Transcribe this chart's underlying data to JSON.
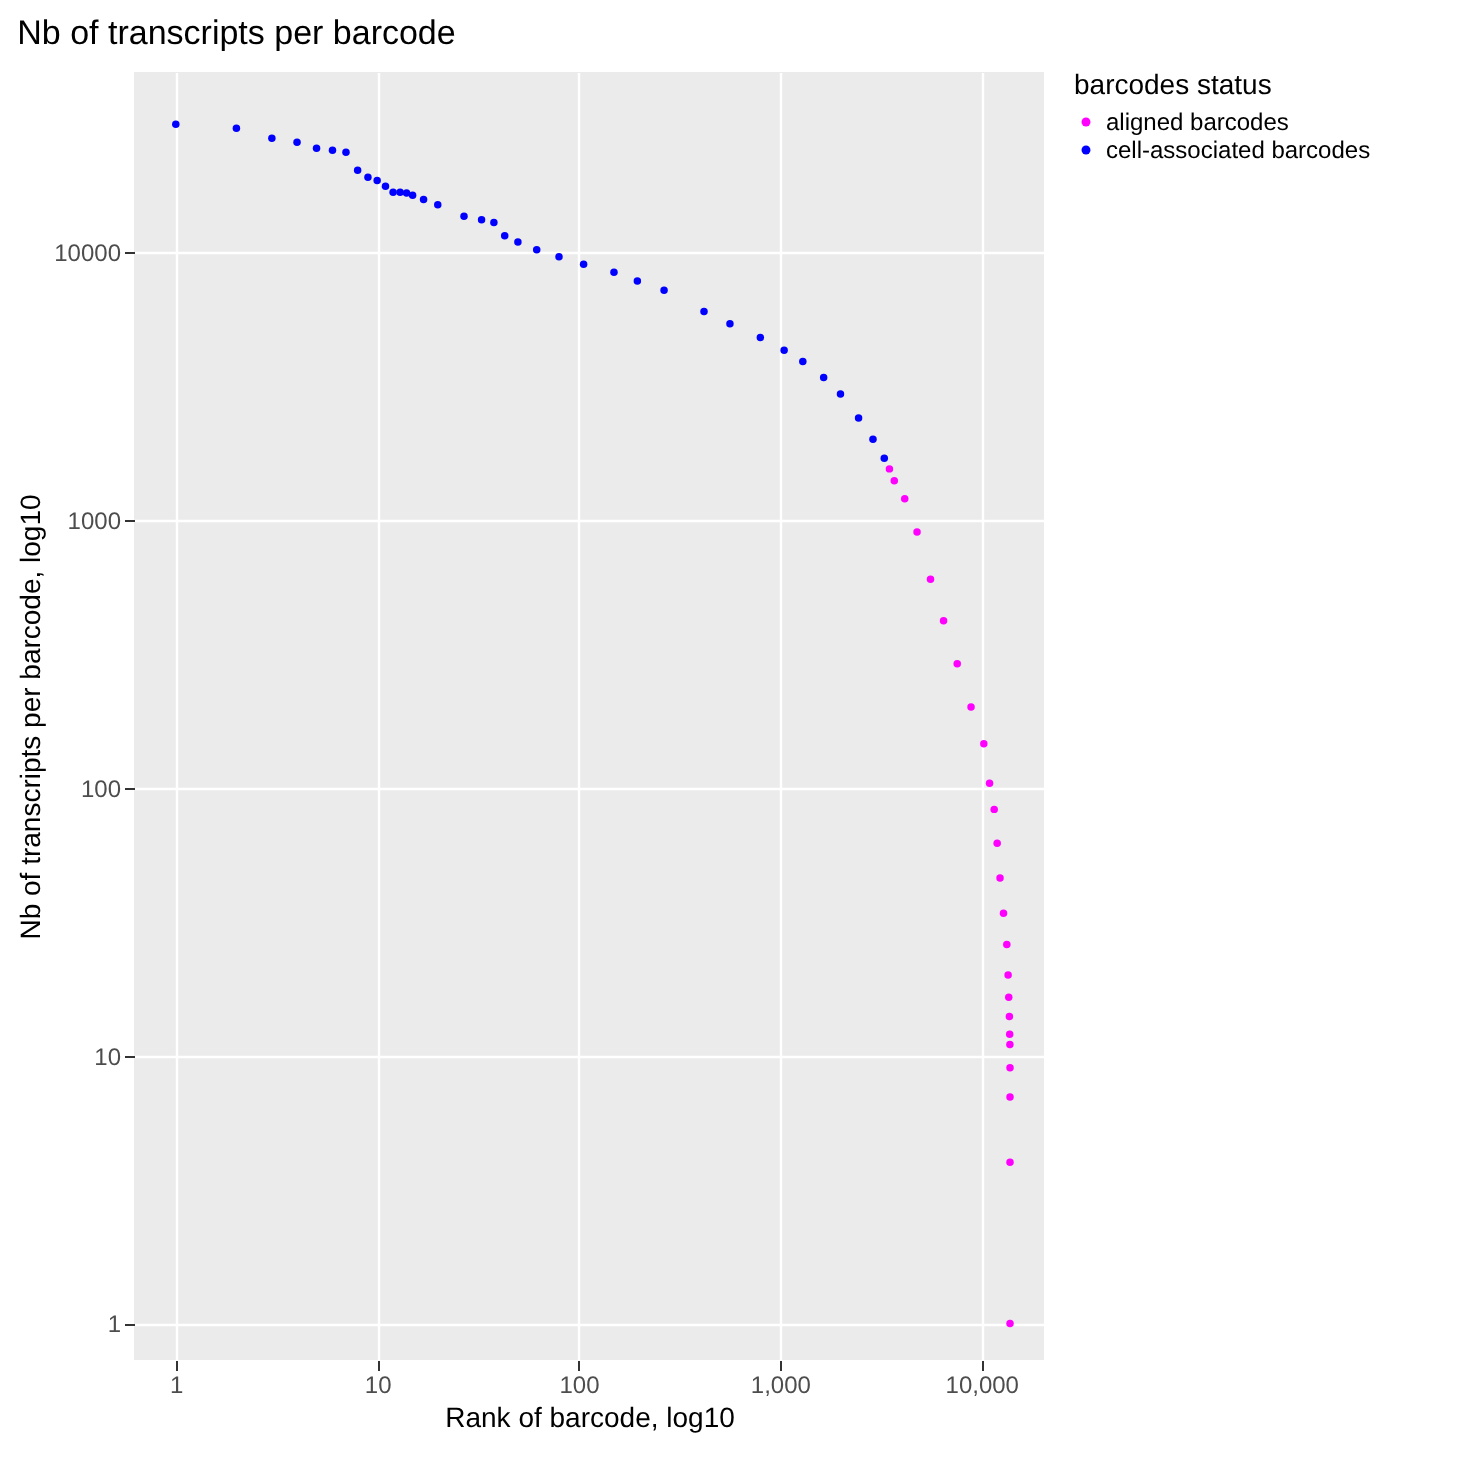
{
  "chart_data": {
    "type": "scatter",
    "title": "Nb of transcripts per barcode",
    "xlabel": "Rank of barcode, log10",
    "ylabel": "Nb of transcripts per barcode, log10",
    "legend_title": "barcodes status",
    "log": "xy",
    "grid": true,
    "legend": "right",
    "marker": "circle",
    "xlim": [
      0.62,
      20500
    ],
    "xticks": [
      1,
      10,
      100,
      {
        "value": 1000,
        "label": "1,000"
      },
      {
        "value": 10000,
        "label": "10,000"
      }
    ],
    "ylim": [
      0.73,
      47000
    ],
    "yticks": [
      1,
      10,
      100,
      1000,
      10000
    ],
    "series": [
      {
        "name": "aligned barcodes",
        "color": "#ff00ff",
        "x": [
          3500,
          3700,
          4170,
          4800,
          5600,
          6500,
          7600,
          8900,
          10300,
          11000,
          11600,
          12000,
          12400,
          12900,
          13400,
          13600,
          13700,
          13800,
          13850,
          13880,
          13900,
          13900,
          13900,
          13900
        ],
        "values": [
          1550,
          1400,
          1200,
          900,
          600,
          420,
          290,
          200,
          146,
          104,
          83,
          62,
          46,
          34,
          26,
          20,
          16.5,
          14,
          12,
          11,
          9,
          7,
          4,
          1
        ]
      },
      {
        "name": "cell-associated barcodes",
        "color": "#0000ff",
        "x": [
          1,
          2,
          3,
          4,
          5,
          6,
          7,
          8,
          9,
          10,
          11,
          12,
          13,
          14,
          15,
          17,
          20,
          27,
          33,
          38,
          43,
          50,
          62,
          80,
          106,
          150,
          196,
          266,
          420,
          565,
          800,
          1050,
          1300,
          1650,
          2000,
          2460,
          2900,
          3300
        ],
        "values": [
          30000,
          29000,
          26600,
          25700,
          24400,
          24000,
          23600,
          20200,
          19000,
          18500,
          17600,
          16700,
          16700,
          16600,
          16300,
          15700,
          15000,
          13600,
          13200,
          12900,
          11500,
          10900,
          10200,
          9600,
          9000,
          8400,
          7800,
          7200,
          6000,
          5400,
          4800,
          4300,
          3900,
          3400,
          2950,
          2400,
          2000,
          1700
        ]
      }
    ]
  }
}
